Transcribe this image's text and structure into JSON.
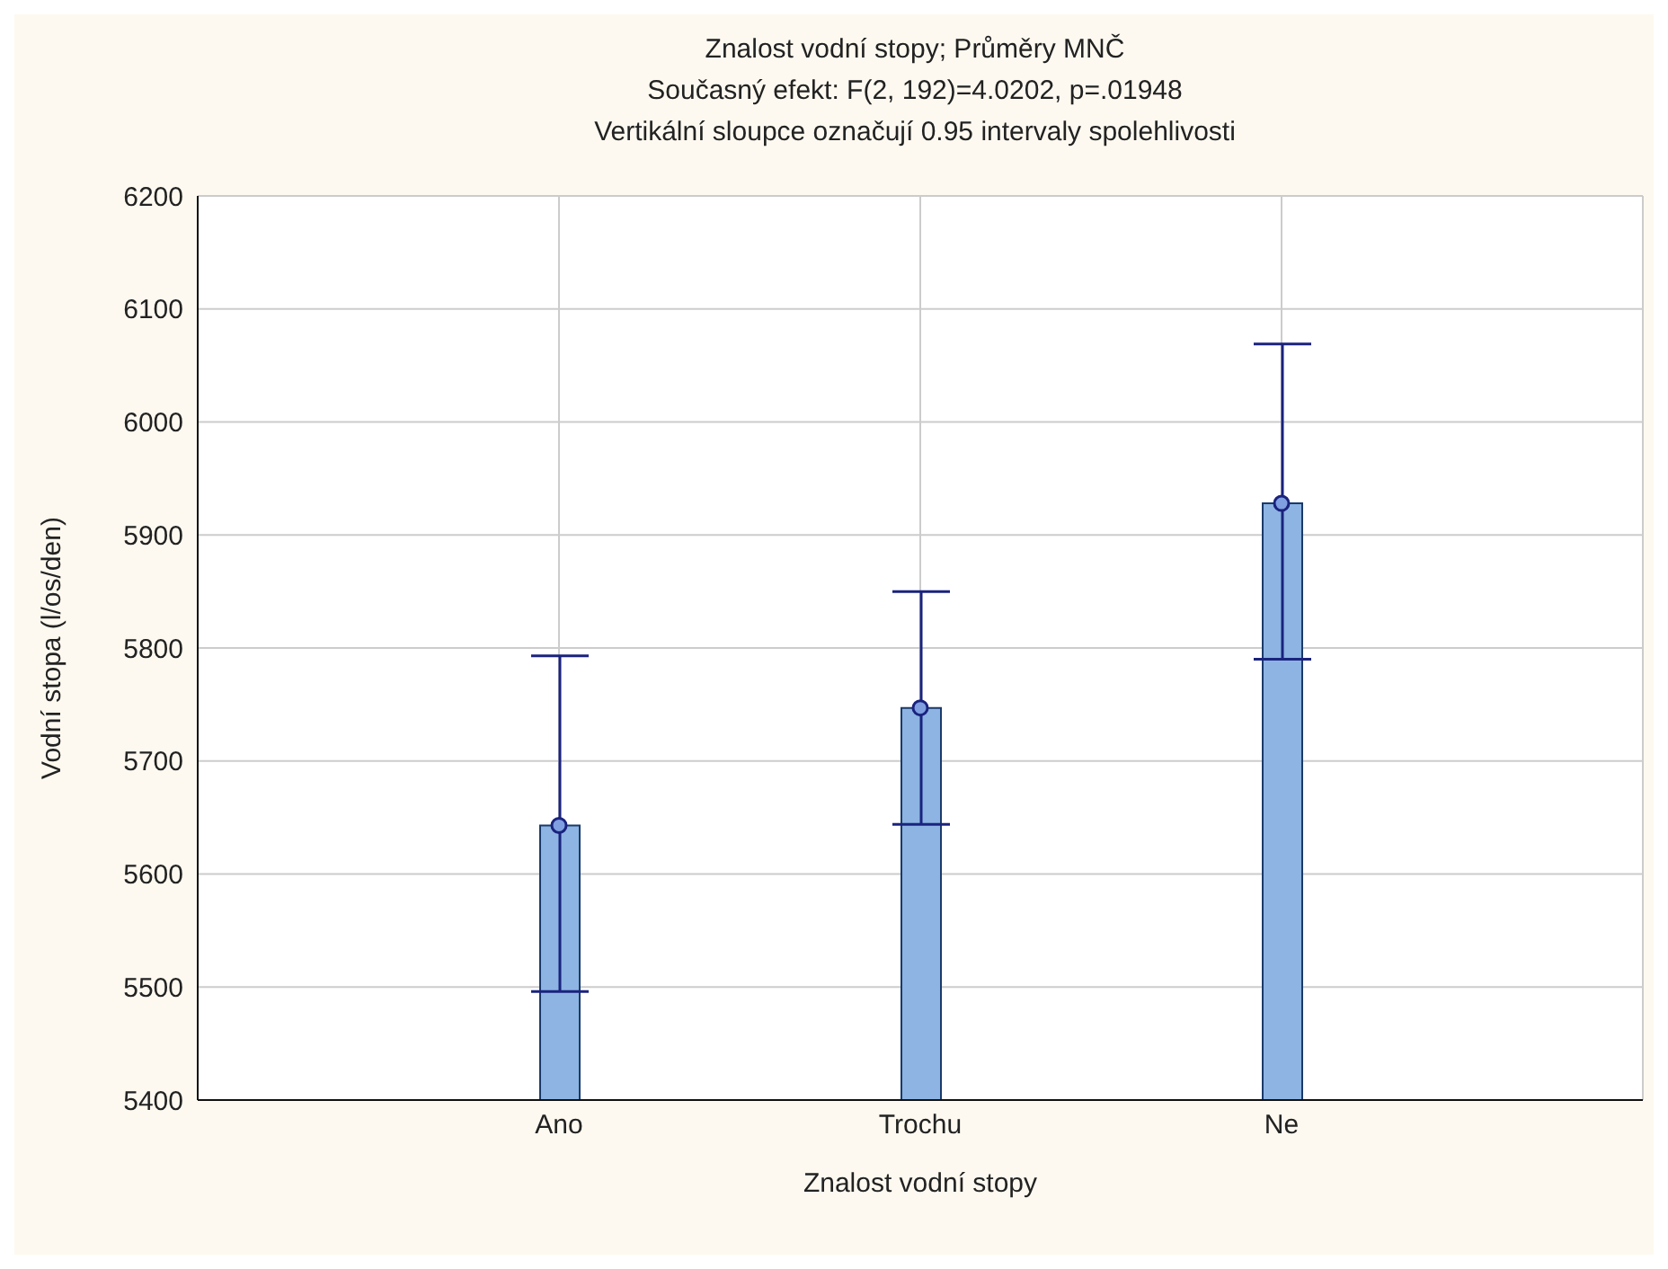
{
  "chart_data": {
    "type": "bar",
    "title": "Znalost vodní stopy; Průměry MNČ",
    "subtitle": "Současný efekt: F(2, 192)=4.0202, p=.01948",
    "annotations": [
      "Vertikální sloupce označují 0.95 intervaly spolehlivosti"
    ],
    "xlabel": "Znalost vodní stopy",
    "ylabel": "Vodní stopa (l/os/den)",
    "categories": [
      "Ano",
      "Trochu",
      "Ne"
    ],
    "series": [
      {
        "color": "#8db4e2",
        "values": [
          5643,
          5747,
          5928
        ],
        "errors": [
          [
            5496,
            5793
          ],
          [
            5644,
            5850
          ],
          [
            5790,
            6069
          ]
        ]
      },
      {
        "type": "scatter",
        "color": "#7f9fe0",
        "x": [
          "Ano",
          "Trochu",
          "Ne"
        ],
        "values": [
          5643,
          5747,
          5928
        ],
        "marker": "circle"
      }
    ],
    "ylim": [
      5400,
      6200
    ],
    "yticks": [
      5400,
      5500,
      5600,
      5700,
      5800,
      5900,
      6000,
      6100,
      6200
    ],
    "grid": true
  }
}
